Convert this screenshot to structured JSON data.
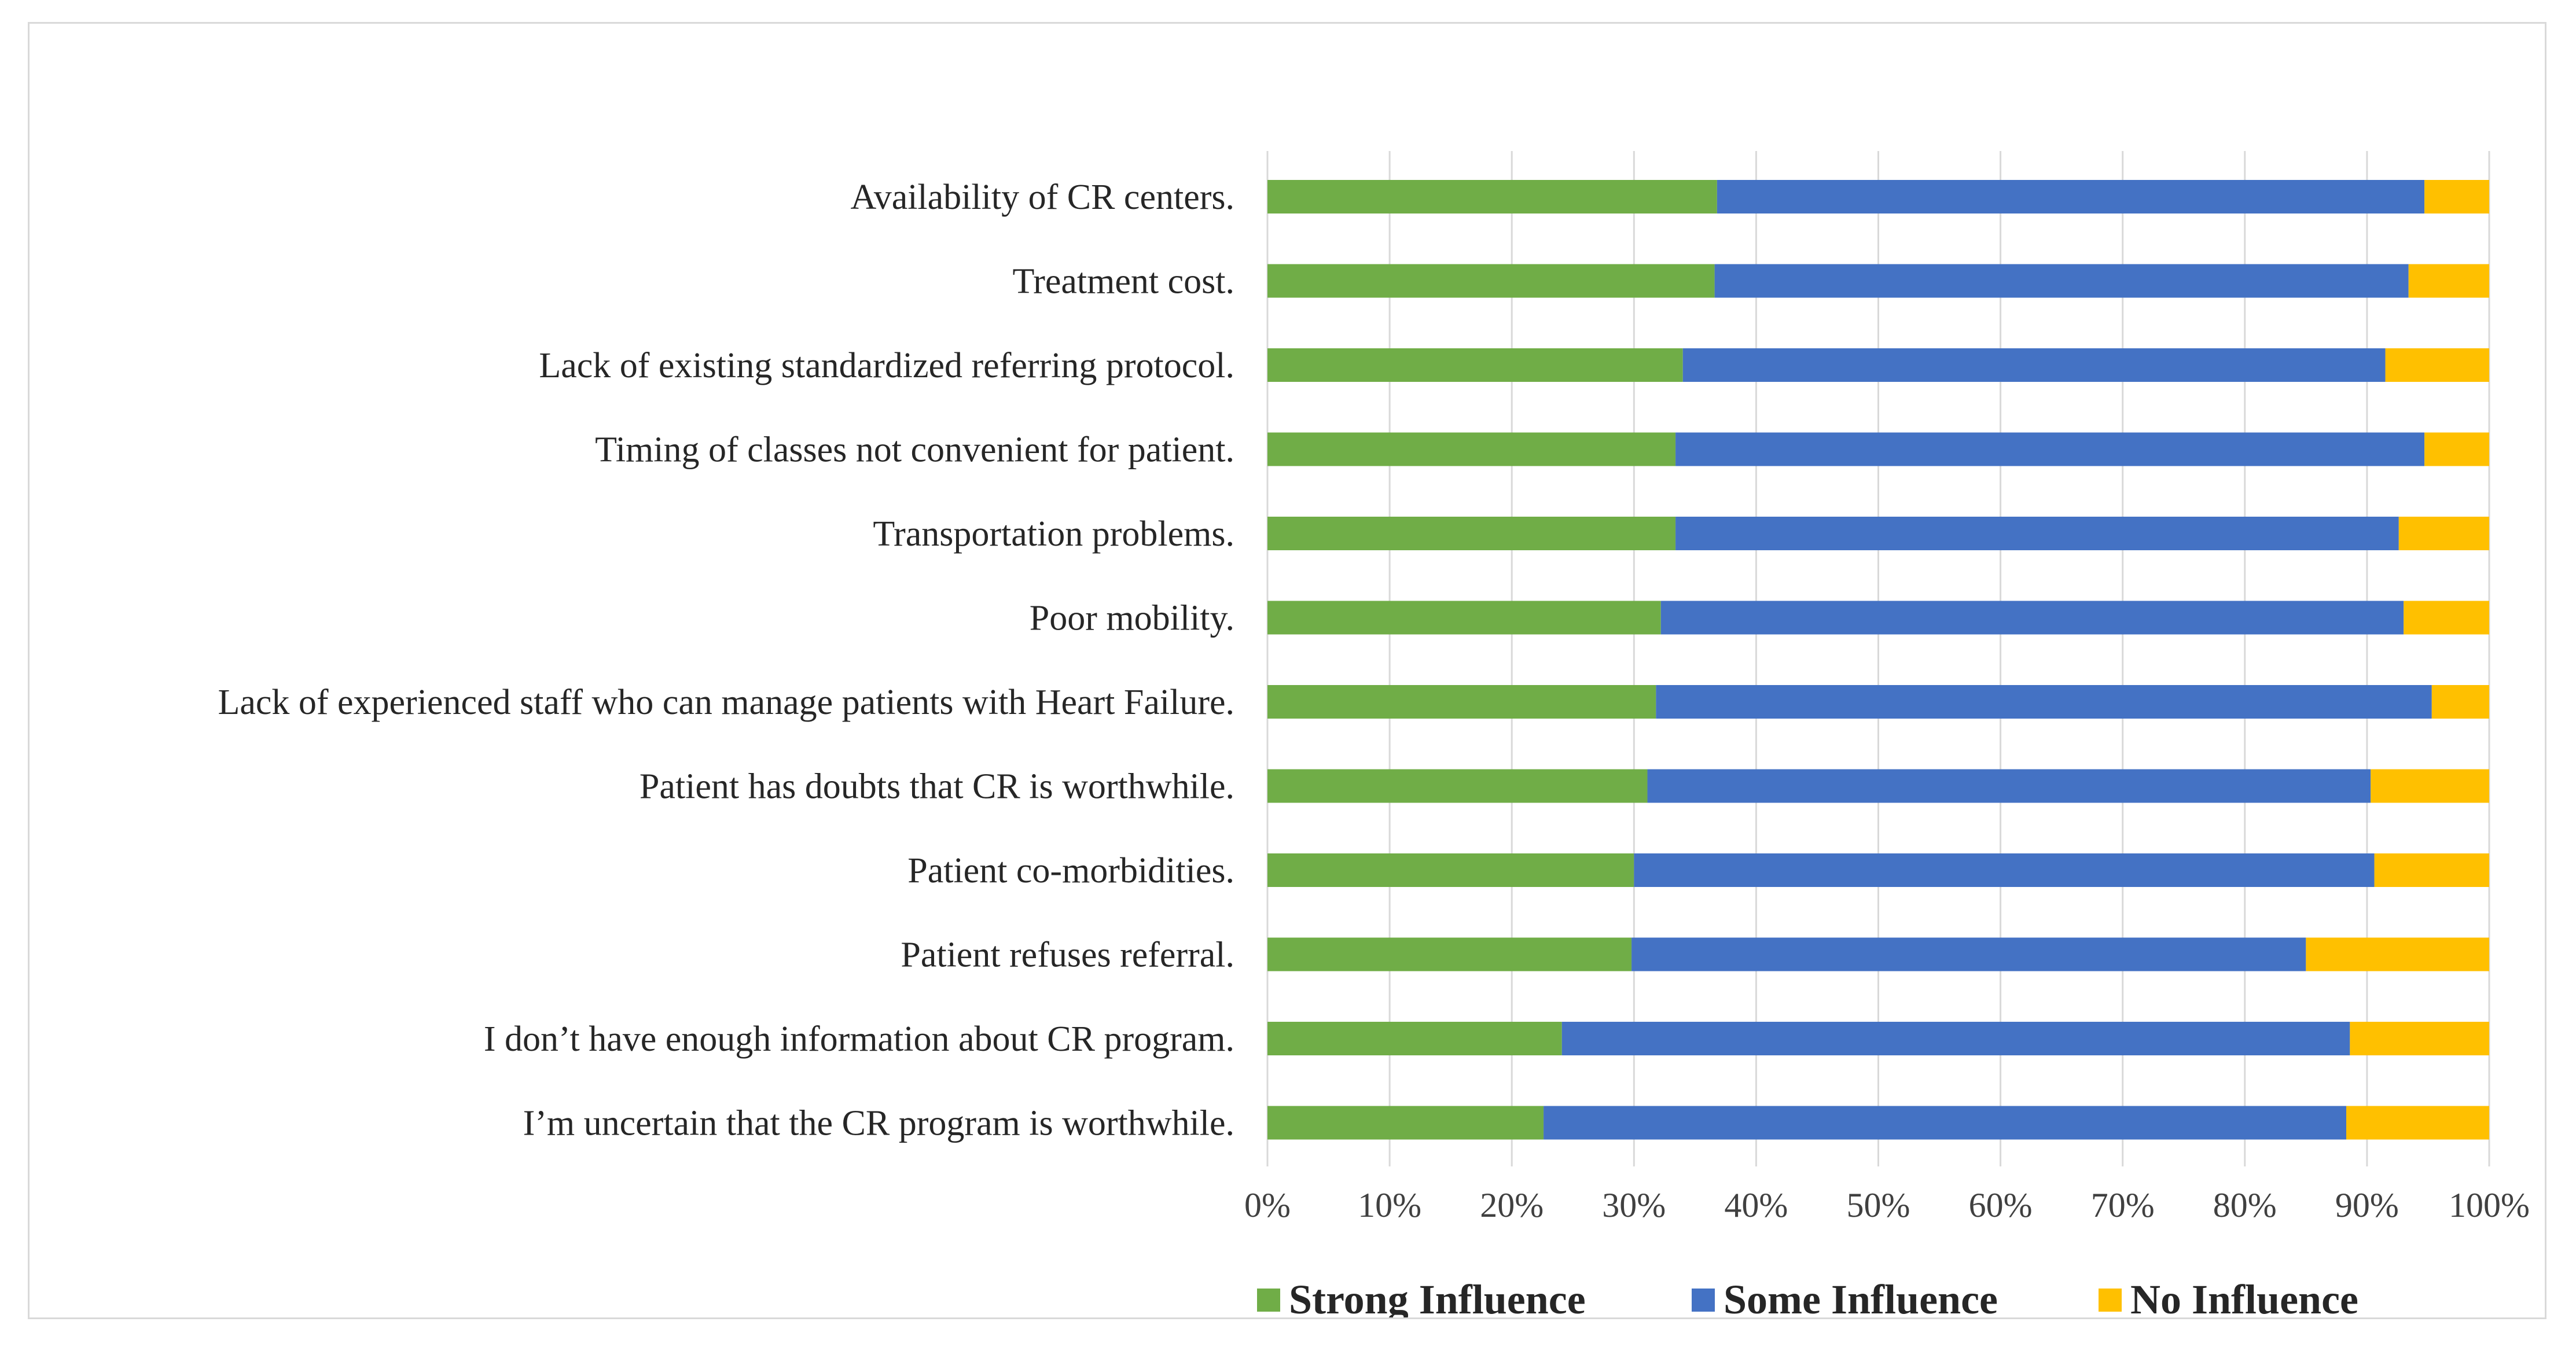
{
  "chart_data": {
    "type": "bar",
    "orientation": "horizontal",
    "stacked": "percent",
    "categories": [
      "Availability of CR centers.",
      "Treatment cost.",
      "Lack of existing standardized referring protocol.",
      "Timing of classes not convenient for patient.",
      "Transportation problems.",
      "Poor mobility.",
      "Lack of experienced staff who can manage patients with Heart Failure.",
      "Patient has doubts that CR is worthwhile.",
      "Patient co-morbidities.",
      "Patient refuses referral.",
      "I don’t have enough information about CR program.",
      "I’m uncertain that the CR program is worthwhile."
    ],
    "series": [
      {
        "name": "Strong Influence",
        "color": "#70ad47",
        "values": [
          36.8,
          36.6,
          34.0,
          33.4,
          33.4,
          32.2,
          31.8,
          31.1,
          30.0,
          29.8,
          24.1,
          22.6
        ]
      },
      {
        "name": "Some Influence",
        "color": "#4472c4",
        "values": [
          57.9,
          56.8,
          57.5,
          61.3,
          59.2,
          60.8,
          63.5,
          59.2,
          60.6,
          55.2,
          64.5,
          65.7
        ]
      },
      {
        "name": "No Influence",
        "color": "#ffc000",
        "values": [
          5.3,
          6.6,
          8.5,
          5.3,
          7.4,
          7.0,
          4.7,
          9.7,
          9.4,
          15.0,
          11.4,
          11.7
        ]
      }
    ],
    "xticks": [
      "0%",
      "10%",
      "20%",
      "30%",
      "40%",
      "50%",
      "60%",
      "70%",
      "80%",
      "90%",
      "100%"
    ],
    "xlim": [
      0,
      100
    ],
    "grid": "vertical",
    "legend": "bottom"
  }
}
